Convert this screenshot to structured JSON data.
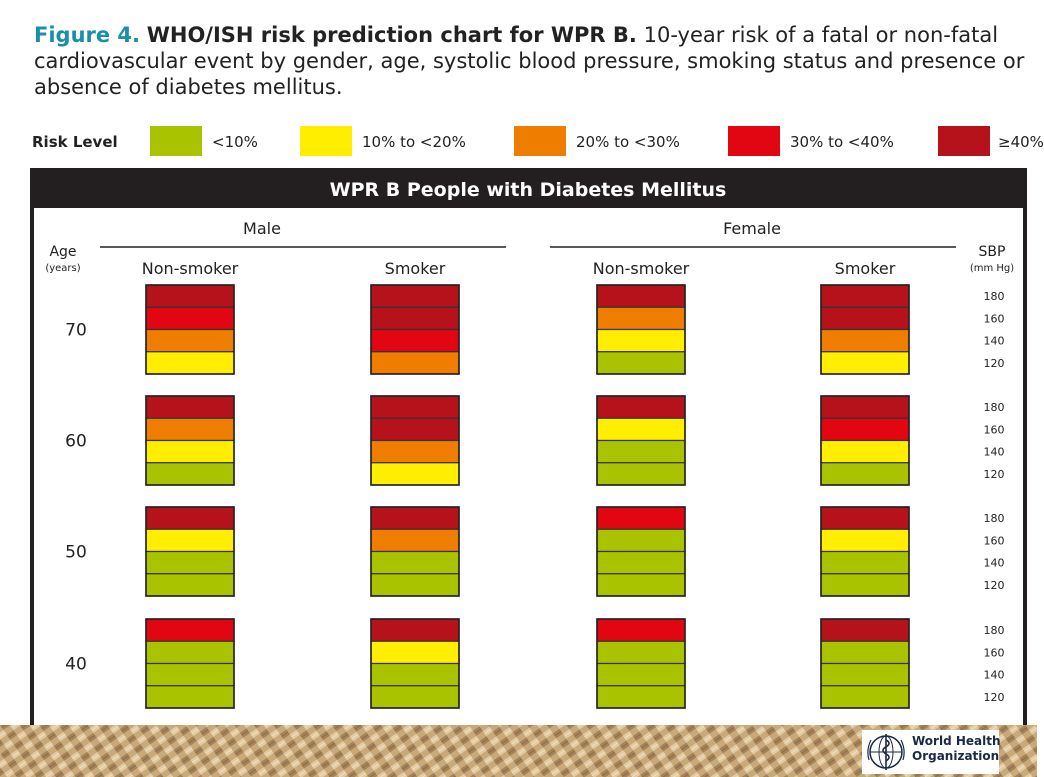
{
  "caption": {
    "figure_label": "Figure 4.",
    "title": "WHO/ISH risk prediction chart for WPR B.",
    "description": "10-year risk of a fatal or non-fatal cardiovascular event by gender, age, systolic blood pressure, smoking status and presence or absence of diabetes mellitus."
  },
  "legend": {
    "label": "Risk Level",
    "items": [
      {
        "label": "<10%",
        "color": "#aac300"
      },
      {
        "label": "10% to <20%",
        "color": "#ffee00"
      },
      {
        "label": "20% to <30%",
        "color": "#ee7d00"
      },
      {
        "label": "30% to <40%",
        "color": "#e20613"
      },
      {
        "label": "≥40%",
        "color": "#b5121b"
      }
    ]
  },
  "chart_data": {
    "type": "heatmap",
    "title": "WPR B People with Diabetes Mellitus",
    "genders": [
      "Male",
      "Female"
    ],
    "smoking_status": [
      "Non-smoker",
      "Smoker"
    ],
    "age_label": "Age",
    "age_unit": "(years)",
    "ages": [
      "70",
      "60",
      "50",
      "40"
    ],
    "sbp_label": "SBP",
    "sbp_unit": "(mm Hg)",
    "sbp_levels": [
      "180",
      "160",
      "140",
      "120"
    ],
    "risk_levels": [
      "<10%",
      "10% to <20%",
      "20% to <30%",
      "30% to <40%",
      "≥40%"
    ],
    "note": "cells hold risk-level index 0..4 (matching risk_levels); rows ordered by sbp_levels top to bottom",
    "cells": {
      "Male|Non-smoker": {
        "70": [
          4,
          3,
          2,
          1
        ],
        "60": [
          4,
          2,
          1,
          0
        ],
        "50": [
          4,
          1,
          0,
          0
        ],
        "40": [
          3,
          0,
          0,
          0
        ]
      },
      "Male|Smoker": {
        "70": [
          4,
          4,
          3,
          2
        ],
        "60": [
          4,
          4,
          2,
          1
        ],
        "50": [
          4,
          2,
          0,
          0
        ],
        "40": [
          4,
          1,
          0,
          0
        ]
      },
      "Female|Non-smoker": {
        "70": [
          4,
          2,
          1,
          0
        ],
        "60": [
          4,
          1,
          0,
          0
        ],
        "50": [
          3,
          0,
          0,
          0
        ],
        "40": [
          3,
          0,
          0,
          0
        ]
      },
      "Female|Smoker": {
        "70": [
          4,
          4,
          2,
          1
        ],
        "60": [
          4,
          3,
          1,
          0
        ],
        "50": [
          4,
          1,
          0,
          0
        ],
        "40": [
          4,
          0,
          0,
          0
        ]
      }
    }
  },
  "logo": {
    "line1": "World Health",
    "line2": "Organization"
  }
}
